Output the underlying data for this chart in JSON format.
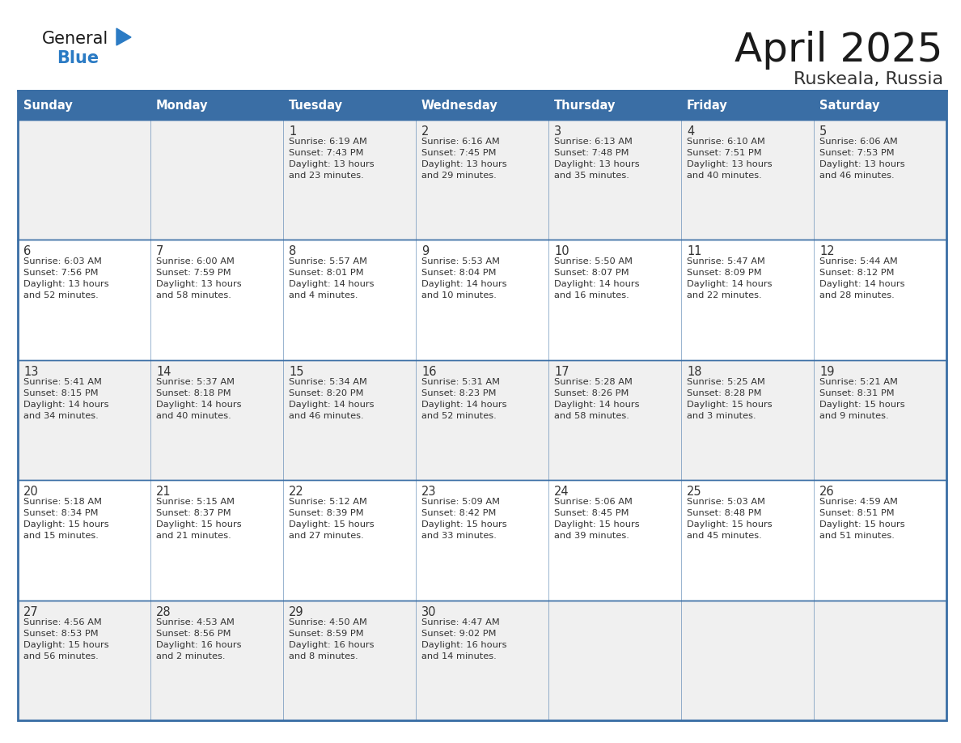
{
  "title": "April 2025",
  "subtitle": "Ruskeala, Russia",
  "header_bg_color": "#3a6ea5",
  "header_text_color": "#ffffff",
  "row_bg_colors": [
    "#f0f0f0",
    "#ffffff",
    "#f0f0f0",
    "#ffffff",
    "#f0f0f0"
  ],
  "border_color": "#3a6ea5",
  "days_of_week": [
    "Sunday",
    "Monday",
    "Tuesday",
    "Wednesday",
    "Thursday",
    "Friday",
    "Saturday"
  ],
  "title_color": "#1a1a1a",
  "subtitle_color": "#333333",
  "cell_text_color": "#333333",
  "day_num_color": "#333333",
  "logo_general_color": "#1a1a1a",
  "logo_blue_color": "#2b7bc4",
  "cell_info_fontsize": 8.2,
  "day_num_fontsize": 10.5,
  "header_fontsize": 10.5,
  "title_fontsize": 36,
  "subtitle_fontsize": 16,
  "calendar_data": [
    [
      {
        "day": null,
        "info": null
      },
      {
        "day": null,
        "info": null
      },
      {
        "day": "1",
        "info": "Sunrise: 6:19 AM\nSunset: 7:43 PM\nDaylight: 13 hours\nand 23 minutes."
      },
      {
        "day": "2",
        "info": "Sunrise: 6:16 AM\nSunset: 7:45 PM\nDaylight: 13 hours\nand 29 minutes."
      },
      {
        "day": "3",
        "info": "Sunrise: 6:13 AM\nSunset: 7:48 PM\nDaylight: 13 hours\nand 35 minutes."
      },
      {
        "day": "4",
        "info": "Sunrise: 6:10 AM\nSunset: 7:51 PM\nDaylight: 13 hours\nand 40 minutes."
      },
      {
        "day": "5",
        "info": "Sunrise: 6:06 AM\nSunset: 7:53 PM\nDaylight: 13 hours\nand 46 minutes."
      }
    ],
    [
      {
        "day": "6",
        "info": "Sunrise: 6:03 AM\nSunset: 7:56 PM\nDaylight: 13 hours\nand 52 minutes."
      },
      {
        "day": "7",
        "info": "Sunrise: 6:00 AM\nSunset: 7:59 PM\nDaylight: 13 hours\nand 58 minutes."
      },
      {
        "day": "8",
        "info": "Sunrise: 5:57 AM\nSunset: 8:01 PM\nDaylight: 14 hours\nand 4 minutes."
      },
      {
        "day": "9",
        "info": "Sunrise: 5:53 AM\nSunset: 8:04 PM\nDaylight: 14 hours\nand 10 minutes."
      },
      {
        "day": "10",
        "info": "Sunrise: 5:50 AM\nSunset: 8:07 PM\nDaylight: 14 hours\nand 16 minutes."
      },
      {
        "day": "11",
        "info": "Sunrise: 5:47 AM\nSunset: 8:09 PM\nDaylight: 14 hours\nand 22 minutes."
      },
      {
        "day": "12",
        "info": "Sunrise: 5:44 AM\nSunset: 8:12 PM\nDaylight: 14 hours\nand 28 minutes."
      }
    ],
    [
      {
        "day": "13",
        "info": "Sunrise: 5:41 AM\nSunset: 8:15 PM\nDaylight: 14 hours\nand 34 minutes."
      },
      {
        "day": "14",
        "info": "Sunrise: 5:37 AM\nSunset: 8:18 PM\nDaylight: 14 hours\nand 40 minutes."
      },
      {
        "day": "15",
        "info": "Sunrise: 5:34 AM\nSunset: 8:20 PM\nDaylight: 14 hours\nand 46 minutes."
      },
      {
        "day": "16",
        "info": "Sunrise: 5:31 AM\nSunset: 8:23 PM\nDaylight: 14 hours\nand 52 minutes."
      },
      {
        "day": "17",
        "info": "Sunrise: 5:28 AM\nSunset: 8:26 PM\nDaylight: 14 hours\nand 58 minutes."
      },
      {
        "day": "18",
        "info": "Sunrise: 5:25 AM\nSunset: 8:28 PM\nDaylight: 15 hours\nand 3 minutes."
      },
      {
        "day": "19",
        "info": "Sunrise: 5:21 AM\nSunset: 8:31 PM\nDaylight: 15 hours\nand 9 minutes."
      }
    ],
    [
      {
        "day": "20",
        "info": "Sunrise: 5:18 AM\nSunset: 8:34 PM\nDaylight: 15 hours\nand 15 minutes."
      },
      {
        "day": "21",
        "info": "Sunrise: 5:15 AM\nSunset: 8:37 PM\nDaylight: 15 hours\nand 21 minutes."
      },
      {
        "day": "22",
        "info": "Sunrise: 5:12 AM\nSunset: 8:39 PM\nDaylight: 15 hours\nand 27 minutes."
      },
      {
        "day": "23",
        "info": "Sunrise: 5:09 AM\nSunset: 8:42 PM\nDaylight: 15 hours\nand 33 minutes."
      },
      {
        "day": "24",
        "info": "Sunrise: 5:06 AM\nSunset: 8:45 PM\nDaylight: 15 hours\nand 39 minutes."
      },
      {
        "day": "25",
        "info": "Sunrise: 5:03 AM\nSunset: 8:48 PM\nDaylight: 15 hours\nand 45 minutes."
      },
      {
        "day": "26",
        "info": "Sunrise: 4:59 AM\nSunset: 8:51 PM\nDaylight: 15 hours\nand 51 minutes."
      }
    ],
    [
      {
        "day": "27",
        "info": "Sunrise: 4:56 AM\nSunset: 8:53 PM\nDaylight: 15 hours\nand 56 minutes."
      },
      {
        "day": "28",
        "info": "Sunrise: 4:53 AM\nSunset: 8:56 PM\nDaylight: 16 hours\nand 2 minutes."
      },
      {
        "day": "29",
        "info": "Sunrise: 4:50 AM\nSunset: 8:59 PM\nDaylight: 16 hours\nand 8 minutes."
      },
      {
        "day": "30",
        "info": "Sunrise: 4:47 AM\nSunset: 9:02 PM\nDaylight: 16 hours\nand 14 minutes."
      },
      {
        "day": null,
        "info": null
      },
      {
        "day": null,
        "info": null
      },
      {
        "day": null,
        "info": null
      }
    ]
  ]
}
